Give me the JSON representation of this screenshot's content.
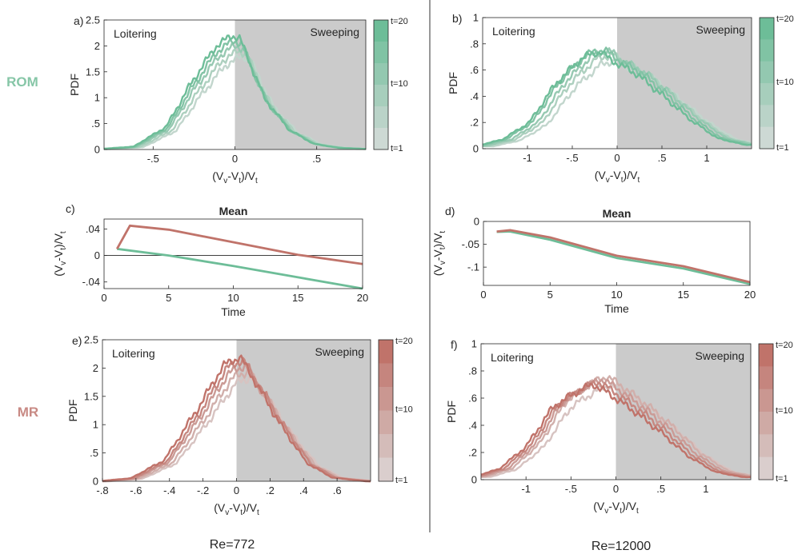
{
  "figure": {
    "row_labels": {
      "top": "ROM",
      "bottom": "MR"
    },
    "column_labels": {
      "left": "Re=772",
      "right": "Re=12000"
    }
  },
  "colors": {
    "rom": "#6dbd98",
    "mr": "#c0736a",
    "shade": "#cbcbcb",
    "rom_label": "#86c6a7",
    "mr_label": "#c88a84"
  },
  "chart_data": [
    {
      "panel": "a)",
      "type": "line",
      "row": "ROM",
      "re": "Re=772",
      "xlabel": "(Vv-Vt)/Vt",
      "ylabel": "PDF",
      "xlim": [
        -0.8,
        0.8
      ],
      "ylim": [
        0,
        2.5
      ],
      "xticks": [
        -0.5,
        0,
        0.5
      ],
      "yticks": [
        0,
        0.5,
        1,
        1.5,
        2,
        2.5
      ],
      "region_labels": {
        "left": "Loitering",
        "right": "Sweeping"
      },
      "shaded_from": 0,
      "colorbar": {
        "labels": [
          "t=20",
          "t=10",
          "t=1"
        ]
      },
      "series_anchor": {
        "x": [
          -0.8,
          -0.6,
          -0.4,
          -0.25,
          -0.1,
          0.0,
          0.05,
          0.2,
          0.35,
          0.5,
          0.65,
          0.8
        ],
        "y": [
          0.01,
          0.05,
          0.4,
          1.15,
          1.8,
          2.0,
          1.95,
          0.9,
          0.35,
          0.1,
          0.03,
          0.01
        ]
      },
      "series": [
        {
          "name": "t=1",
          "x_shift": 0.04,
          "peak": 1.8
        },
        {
          "name": "t=5",
          "x_shift": 0.02,
          "peak": 1.9
        },
        {
          "name": "t=10",
          "x_shift": 0.0,
          "peak": 2.0
        },
        {
          "name": "t=15",
          "x_shift": -0.01,
          "peak": 2.1
        },
        {
          "name": "t=20",
          "x_shift": -0.02,
          "peak": 2.2
        }
      ]
    },
    {
      "panel": "b)",
      "type": "line",
      "row": "ROM",
      "re": "Re=12000",
      "xlabel": "(Vv-Vt)/Vt",
      "ylabel": "PDF",
      "xlim": [
        -1.5,
        1.5
      ],
      "ylim": [
        0,
        1
      ],
      "xticks": [
        -1,
        -0.5,
        0,
        0.5,
        1
      ],
      "yticks": [
        0,
        0.2,
        0.4,
        0.6,
        0.8,
        1
      ],
      "region_labels": {
        "left": "Loitering",
        "right": "Sweeping"
      },
      "shaded_from": 0,
      "colorbar": {
        "labels": [
          "t=20",
          "t=10",
          "t=1"
        ]
      },
      "series_anchor": {
        "x": [
          -1.5,
          -1.2,
          -0.9,
          -0.6,
          -0.3,
          -0.1,
          0.0,
          0.3,
          0.6,
          0.9,
          1.2,
          1.5
        ],
        "y": [
          0.02,
          0.07,
          0.2,
          0.5,
          0.7,
          0.74,
          0.68,
          0.57,
          0.4,
          0.22,
          0.08,
          0.03
        ]
      },
      "series": [
        {
          "name": "t=1",
          "x_shift": 0.12,
          "peak": 0.68
        },
        {
          "name": "t=5",
          "x_shift": 0.06,
          "peak": 0.72
        },
        {
          "name": "t=10",
          "x_shift": 0.02,
          "peak": 0.75
        },
        {
          "name": "t=15",
          "x_shift": -0.04,
          "peak": 0.76
        },
        {
          "name": "t=20",
          "x_shift": -0.08,
          "peak": 0.74
        }
      ]
    },
    {
      "panel": "c)",
      "type": "line",
      "title": "Mean",
      "xlabel": "Time",
      "ylabel": "(Vv-Vt)/Vt",
      "xlim": [
        0,
        20
      ],
      "ylim": [
        -0.05,
        0.055
      ],
      "xticks": [
        0,
        5,
        10,
        15,
        20
      ],
      "yticks": [
        -0.04,
        0,
        0.04
      ],
      "zero_line": true,
      "series": [
        {
          "name": "ROM",
          "x": [
            1,
            5,
            10,
            15,
            20
          ],
          "y": [
            0.01,
            0.0,
            -0.016,
            -0.033,
            -0.05
          ]
        },
        {
          "name": "MR",
          "x": [
            1,
            2,
            5,
            10,
            15,
            20
          ],
          "y": [
            0.01,
            0.045,
            0.039,
            0.02,
            0.001,
            -0.013
          ]
        }
      ]
    },
    {
      "panel": "d)",
      "type": "line",
      "title": "Mean",
      "xlabel": "Time",
      "ylabel": "(Vv-Vt)/Vt",
      "xlim": [
        0,
        20
      ],
      "ylim": [
        -0.14,
        0
      ],
      "xticks": [
        0,
        5,
        10,
        15,
        20
      ],
      "yticks": [
        -0.1,
        -0.05,
        0
      ],
      "zero_line": false,
      "series": [
        {
          "name": "ROM",
          "x": [
            1,
            2,
            5,
            10,
            15,
            20
          ],
          "y": [
            -0.023,
            -0.022,
            -0.04,
            -0.08,
            -0.103,
            -0.137
          ]
        },
        {
          "name": "MR",
          "x": [
            1,
            2,
            5,
            10,
            15,
            20
          ],
          "y": [
            -0.022,
            -0.019,
            -0.035,
            -0.075,
            -0.098,
            -0.133
          ]
        }
      ]
    },
    {
      "panel": "e)",
      "type": "line",
      "row": "MR",
      "re": "Re=772",
      "xlabel": "(Vv-Vt)/Vt",
      "ylabel": "PDF",
      "xlim": [
        -0.8,
        0.8
      ],
      "ylim": [
        0,
        2.5
      ],
      "xticks": [
        -0.8,
        -0.6,
        -0.4,
        -0.2,
        0,
        0.2,
        0.4,
        0.6
      ],
      "yticks": [
        0,
        0.5,
        1,
        1.5,
        2,
        2.5
      ],
      "region_labels": {
        "left": "Loitering",
        "right": "Sweeping"
      },
      "shaded_from": 0,
      "colorbar": {
        "labels": [
          "t=20",
          "t=10",
          "t=1"
        ]
      },
      "series_anchor": {
        "x": [
          -0.8,
          -0.6,
          -0.4,
          -0.2,
          -0.05,
          0.05,
          0.15,
          0.3,
          0.45,
          0.6,
          0.8
        ],
        "y": [
          0.0,
          0.05,
          0.35,
          1.2,
          1.9,
          2.05,
          1.6,
          0.9,
          0.3,
          0.06,
          0.0
        ]
      },
      "series": [
        {
          "name": "t=1",
          "x_shift": 0.04,
          "peak": 1.85
        },
        {
          "name": "t=5",
          "x_shift": 0.02,
          "peak": 1.95
        },
        {
          "name": "t=10",
          "x_shift": 0.0,
          "peak": 2.05
        },
        {
          "name": "t=15",
          "x_shift": -0.01,
          "peak": 2.15
        },
        {
          "name": "t=20",
          "x_shift": -0.03,
          "peak": 2.2
        }
      ]
    },
    {
      "panel": "f)",
      "type": "line",
      "row": "MR",
      "re": "Re=12000",
      "xlabel": "(Vv-Vt)/Vt",
      "ylabel": "PDF",
      "xlim": [
        -1.5,
        1.5
      ],
      "ylim": [
        0,
        1
      ],
      "xticks": [
        -1,
        -0.5,
        0,
        0.5,
        1
      ],
      "yticks": [
        0,
        0.2,
        0.4,
        0.6,
        0.8,
        1
      ],
      "region_labels": {
        "left": "Loitering",
        "right": "Sweeping"
      },
      "shaded_from": 0,
      "colorbar": {
        "labels": [
          "t=20",
          "t=10",
          "t=1"
        ]
      },
      "series_anchor": {
        "x": [
          -1.5,
          -1.2,
          -0.9,
          -0.6,
          -0.3,
          -0.15,
          0.0,
          0.3,
          0.6,
          0.9,
          1.2,
          1.5
        ],
        "y": [
          0.02,
          0.08,
          0.25,
          0.55,
          0.68,
          0.72,
          0.66,
          0.52,
          0.36,
          0.18,
          0.06,
          0.02
        ]
      },
      "series": [
        {
          "name": "t=1",
          "x_shift": 0.1,
          "peak": 0.7
        },
        {
          "name": "t=5",
          "x_shift": 0.05,
          "peak": 0.76
        },
        {
          "name": "t=10",
          "x_shift": 0.0,
          "peak": 0.74
        },
        {
          "name": "t=15",
          "x_shift": -0.05,
          "peak": 0.72
        },
        {
          "name": "t=20",
          "x_shift": -0.1,
          "peak": 0.7
        }
      ]
    }
  ]
}
